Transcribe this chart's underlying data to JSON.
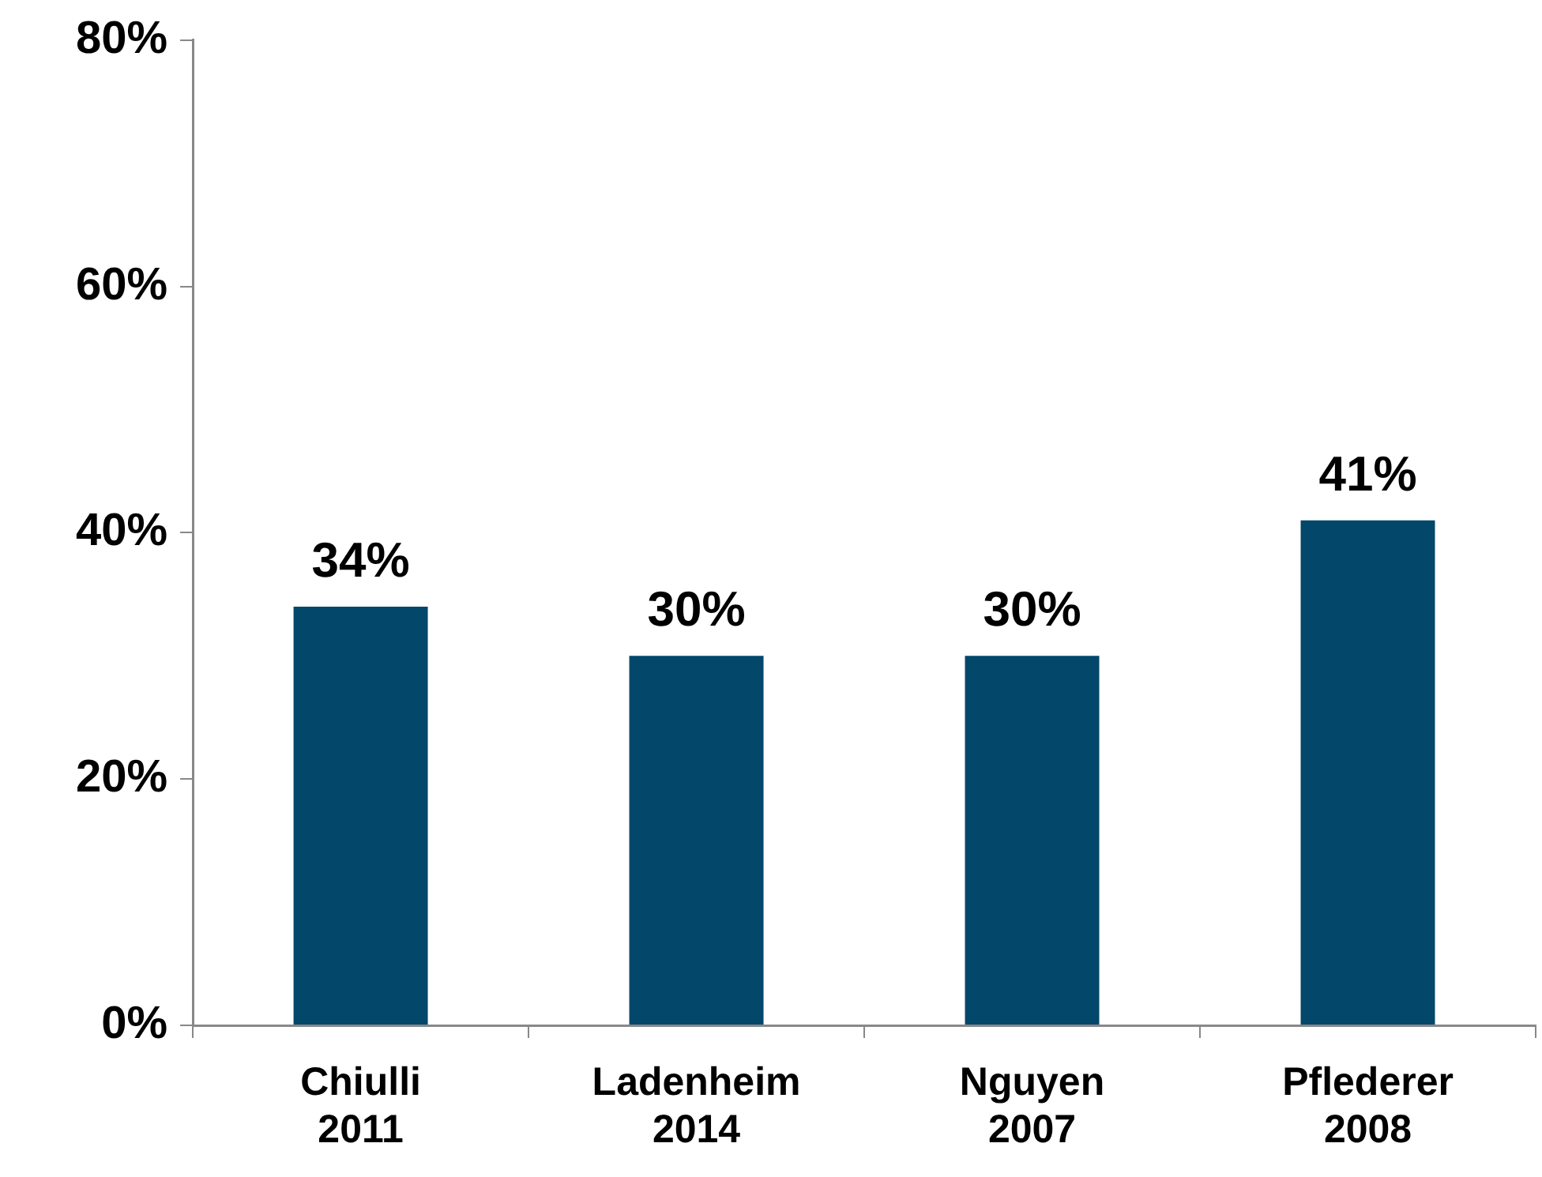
{
  "chart_data": {
    "type": "bar",
    "categories": [
      "Chiulli 2011",
      "Ladenheim 2014",
      "Nguyen 2007",
      "Pflederer 2008"
    ],
    "values": [
      34,
      30,
      30,
      41
    ],
    "color": "#03476a",
    "value_labels": [
      "34%",
      "30%",
      "30%",
      "41%"
    ],
    "ylim": [
      0,
      80
    ],
    "yticks": [
      {
        "value": 0,
        "label": "0%"
      },
      {
        "value": 20,
        "label": "20%"
      },
      {
        "value": 40,
        "label": "40%"
      },
      {
        "value": 60,
        "label": "60%"
      },
      {
        "value": 80,
        "label": "80%"
      }
    ],
    "grid": false,
    "legend": false
  }
}
